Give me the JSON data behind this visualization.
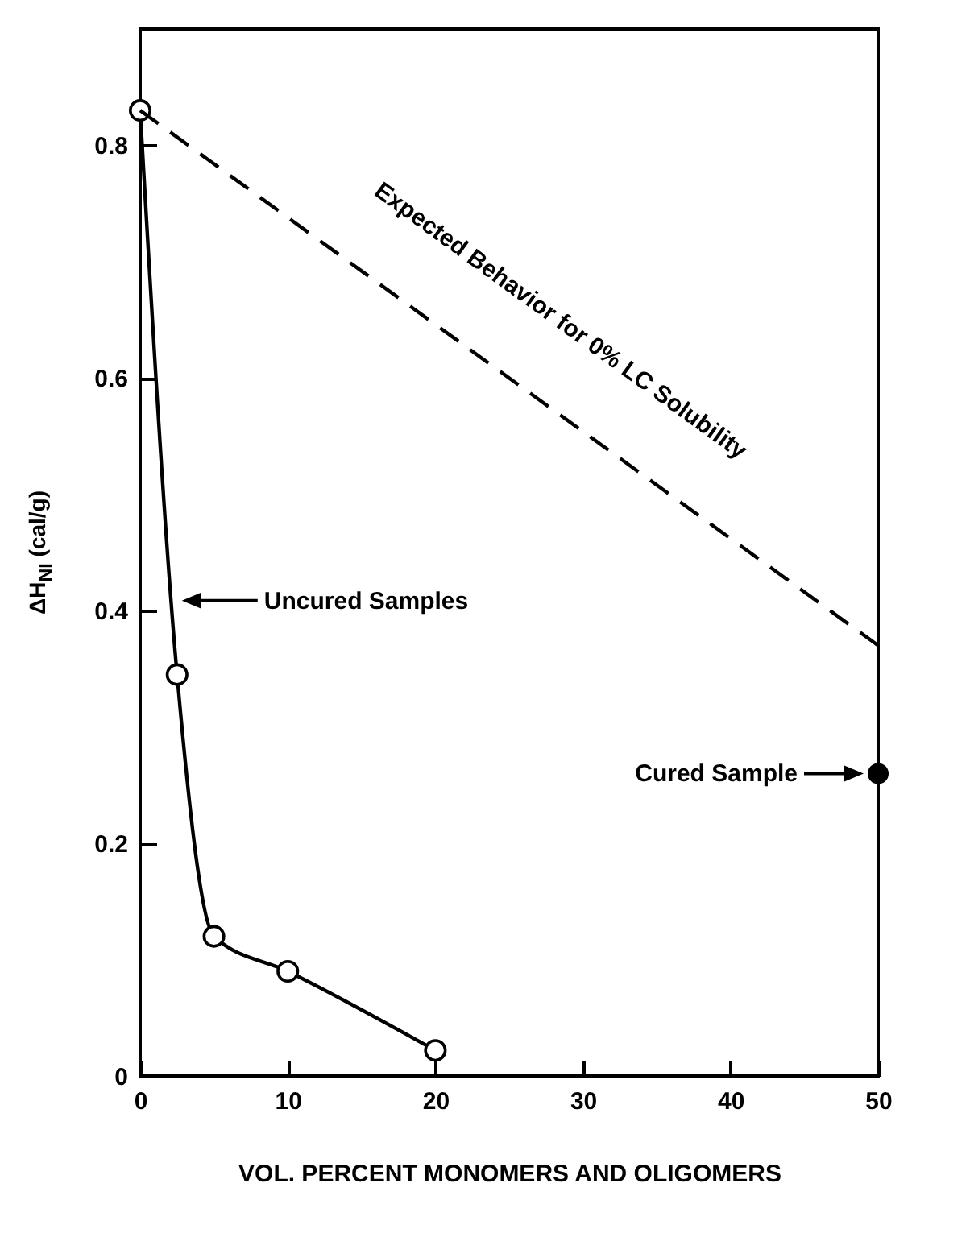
{
  "chart_data": {
    "type": "line",
    "xlabel": "VOL. PERCENT MONOMERS AND OLIGOMERS",
    "ylabel": "ΔH$_{NI}$ (cal/g)",
    "xlim": [
      0,
      50
    ],
    "ylim": [
      0,
      0.9
    ],
    "xticks": [
      0,
      10,
      20,
      30,
      40,
      50
    ],
    "yticks": [
      0,
      0.2,
      0.4,
      0.6,
      0.8
    ],
    "grid": false,
    "series": [
      {
        "name": "Uncured Samples",
        "color": "#000000",
        "marker": "circle",
        "line_style": "solid",
        "x": [
          0,
          2.5,
          5,
          10,
          20
        ],
        "values": [
          0.83,
          0.345,
          0.12,
          0.09,
          0.022
        ]
      },
      {
        "name": "Expected Behavior for 0% LC Solubility",
        "color": "#000000",
        "marker": "none",
        "line_style": "dashed",
        "x": [
          0,
          50
        ],
        "values": [
          0.83,
          0.37
        ]
      },
      {
        "name": "Cured Sample",
        "type": "scatter",
        "color": "#000000",
        "marker": "circle",
        "x": [
          50
        ],
        "values": [
          0.26
        ]
      }
    ]
  }
}
